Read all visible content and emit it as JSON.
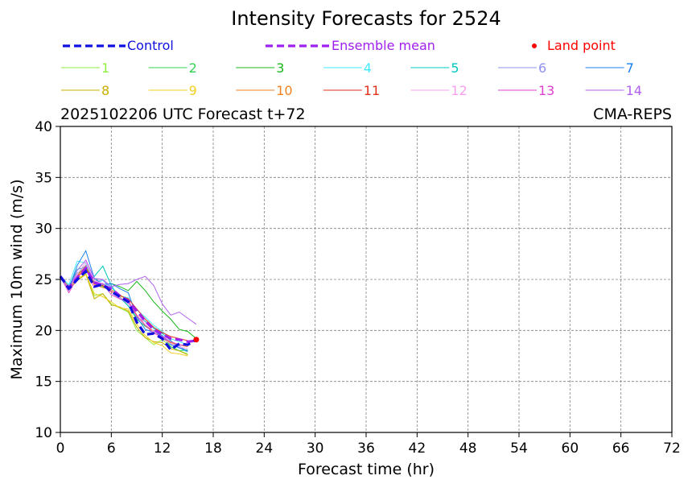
{
  "chart_data": {
    "type": "line",
    "title": "Intensity Forecasts for 2524",
    "subtitle_left": "2025102206 UTC Forecast t+72",
    "subtitle_right": "CMA-REPS",
    "xlabel": "Forecast time (hr)",
    "ylabel": "Maximum 10m wind (m/s)",
    "xlim": [
      0,
      72
    ],
    "ylim": [
      10,
      40
    ],
    "xticks": [
      0,
      6,
      12,
      18,
      24,
      30,
      36,
      42,
      48,
      54,
      60,
      66,
      72
    ],
    "yticks": [
      10,
      15,
      20,
      25,
      30,
      35,
      40
    ],
    "grid": true,
    "legend": {
      "control": {
        "label": "Control",
        "color": "#1010e0"
      },
      "mean": {
        "label": "Ensemble mean",
        "color": "#a020f0"
      },
      "land": {
        "label": "Land point",
        "color": "#ff0000"
      }
    },
    "control": {
      "x": [
        0,
        1,
        2,
        3,
        4,
        5,
        6,
        7,
        8,
        9,
        10,
        11,
        12,
        13,
        14,
        15,
        16
      ],
      "y": [
        25.3,
        24.1,
        25.0,
        25.8,
        24.3,
        24.5,
        23.8,
        23.3,
        22.8,
        20.8,
        19.6,
        19.7,
        19.2,
        18.1,
        18.7,
        18.6,
        19.1
      ]
    },
    "mean": {
      "x": [
        0,
        1,
        2,
        3,
        4,
        5,
        6,
        7,
        8,
        9,
        10,
        11,
        12,
        13,
        14,
        15,
        16
      ],
      "y": [
        25.3,
        24.2,
        25.2,
        26.1,
        24.7,
        24.4,
        24.1,
        23.4,
        22.9,
        21.9,
        20.9,
        20.1,
        19.6,
        19.2,
        19.1,
        18.9,
        19.0
      ]
    },
    "land_point": {
      "x": 16,
      "y": 19.1
    },
    "series": [
      {
        "name": "1",
        "color": "#90ee40",
        "x": [
          0,
          1,
          2,
          3,
          4,
          5,
          6,
          7,
          8,
          9,
          10,
          11,
          12,
          13,
          14,
          15
        ],
        "y": [
          25.3,
          24.2,
          25.0,
          25.6,
          23.4,
          23.6,
          22.6,
          22.2,
          21.8,
          20.0,
          19.3,
          18.6,
          19.1,
          18.4,
          18.0,
          17.7
        ]
      },
      {
        "name": "2",
        "color": "#30d050",
        "x": [
          0,
          1,
          2,
          3,
          4,
          5,
          6,
          7,
          8,
          9,
          10,
          11,
          12,
          13,
          14,
          15
        ],
        "y": [
          25.3,
          24.0,
          25.6,
          26.1,
          24.8,
          24.3,
          23.9,
          23.3,
          22.4,
          21.1,
          20.4,
          19.9,
          19.5,
          18.4,
          18.0,
          18.1
        ]
      },
      {
        "name": "3",
        "color": "#18b818",
        "x": [
          0,
          1,
          2,
          3,
          4,
          5,
          6,
          7,
          8,
          9,
          10,
          11,
          12,
          13,
          14,
          15,
          16
        ],
        "y": [
          25.3,
          24.2,
          25.6,
          25.9,
          25.1,
          24.5,
          24.6,
          24.3,
          23.9,
          24.8,
          23.9,
          22.8,
          21.9,
          21.1,
          20.1,
          19.9,
          19.2
        ]
      },
      {
        "name": "4",
        "color": "#40e8ff",
        "x": [
          0,
          1,
          2,
          3,
          4,
          5,
          6,
          7,
          8,
          9,
          10,
          11,
          12,
          13,
          14,
          15
        ],
        "y": [
          25.3,
          24.5,
          26.8,
          26.6,
          24.6,
          24.9,
          24.2,
          23.4,
          23.2,
          22.0,
          21.3,
          20.5,
          19.9,
          19.2,
          18.9,
          18.6
        ]
      },
      {
        "name": "5",
        "color": "#00c8c0",
        "x": [
          0,
          1,
          2,
          3,
          4,
          5,
          6,
          7,
          8,
          9,
          10,
          11,
          12,
          13,
          14,
          15
        ],
        "y": [
          25.3,
          24.3,
          26.0,
          26.2,
          25.3,
          26.3,
          24.4,
          23.2,
          22.4,
          21.3,
          20.9,
          20.2,
          19.7,
          19.0,
          18.3,
          17.9
        ]
      },
      {
        "name": "6",
        "color": "#9090f0",
        "x": [
          0,
          1,
          2,
          3,
          4,
          5,
          6,
          7,
          8,
          9,
          10,
          11,
          12,
          13,
          14,
          15
        ],
        "y": [
          25.3,
          24.1,
          25.6,
          26.4,
          24.7,
          25.0,
          23.9,
          23.1,
          22.7,
          21.4,
          20.5,
          19.9,
          19.4,
          18.7,
          18.5,
          17.9
        ]
      },
      {
        "name": "7",
        "color": "#1a80f0",
        "x": [
          0,
          1,
          2,
          3,
          4,
          5,
          6,
          7,
          8,
          9,
          10,
          11,
          12,
          13,
          14,
          15
        ],
        "y": [
          25.3,
          24.1,
          26.4,
          27.8,
          25.1,
          24.5,
          24.6,
          24.1,
          23.7,
          21.3,
          20.1,
          19.8,
          19.5,
          18.6,
          18.3,
          18.0
        ]
      },
      {
        "name": "8",
        "color": "#c8b000",
        "x": [
          0,
          1,
          2,
          3,
          4,
          5,
          6,
          7,
          8,
          9,
          10,
          11,
          12,
          13,
          14,
          15
        ],
        "y": [
          25.3,
          24.0,
          24.9,
          25.5,
          23.1,
          23.6,
          22.5,
          22.3,
          21.9,
          20.3,
          19.3,
          18.9,
          18.8,
          18.2,
          18.0,
          17.6
        ]
      },
      {
        "name": "9",
        "color": "#f0d020",
        "x": [
          0,
          1,
          2,
          3,
          4,
          5,
          6,
          7,
          8,
          9,
          10,
          11,
          12,
          13,
          14,
          15
        ],
        "y": [
          25.3,
          24.0,
          25.1,
          25.5,
          23.6,
          23.3,
          22.8,
          22.2,
          22.1,
          20.6,
          19.5,
          18.8,
          18.5,
          17.8,
          17.7,
          17.5
        ]
      },
      {
        "name": "10",
        "color": "#f08020",
        "x": [
          0,
          1,
          2,
          3,
          4,
          5,
          6,
          7,
          8,
          9,
          10,
          11,
          12,
          13,
          14,
          15
        ],
        "y": [
          25.3,
          24.2,
          25.4,
          26.3,
          24.5,
          24.2,
          24.0,
          23.5,
          22.9,
          21.5,
          20.5,
          19.9,
          19.2,
          18.8,
          18.6,
          18.4
        ]
      },
      {
        "name": "11",
        "color": "#e03018",
        "x": [
          0,
          1,
          2,
          3,
          4,
          5,
          6,
          7,
          8,
          9,
          10,
          11,
          12,
          13,
          14,
          15
        ],
        "y": [
          25.3,
          24.2,
          25.3,
          26.0,
          24.6,
          24.4,
          23.8,
          23.4,
          23.1,
          22.1,
          21.1,
          20.3,
          19.8,
          19.4,
          19.2,
          19.0
        ]
      },
      {
        "name": "12",
        "color": "#f8a0f0",
        "x": [
          0,
          1,
          2,
          3,
          4,
          5,
          6,
          7,
          8,
          9,
          10,
          11,
          12,
          13,
          14,
          15
        ],
        "y": [
          25.3,
          24.1,
          25.5,
          26.7,
          24.9,
          24.6,
          23.9,
          23.2,
          22.6,
          21.4,
          20.8,
          19.9,
          19.2,
          18.7,
          18.4,
          18.2
        ]
      },
      {
        "name": "13",
        "color": "#e040d0",
        "x": [
          0,
          1,
          2,
          3,
          4,
          5,
          6,
          7,
          8,
          9,
          10,
          11,
          12,
          13,
          14,
          15
        ],
        "y": [
          25.3,
          23.7,
          25.2,
          26.0,
          24.2,
          24.6,
          23.5,
          23.1,
          22.9,
          21.4,
          20.5,
          19.7,
          19.4,
          18.9,
          18.6,
          18.5
        ]
      },
      {
        "name": "14",
        "color": "#b060f0",
        "x": [
          0,
          1,
          2,
          3,
          4,
          5,
          6,
          7,
          8,
          9,
          10,
          11,
          12,
          13,
          14,
          15,
          16
        ],
        "y": [
          25.3,
          24.0,
          25.9,
          26.9,
          25.1,
          25.0,
          24.3,
          24.5,
          24.6,
          25.0,
          25.3,
          24.4,
          22.6,
          21.5,
          21.8,
          21.2,
          20.6
        ]
      }
    ]
  }
}
